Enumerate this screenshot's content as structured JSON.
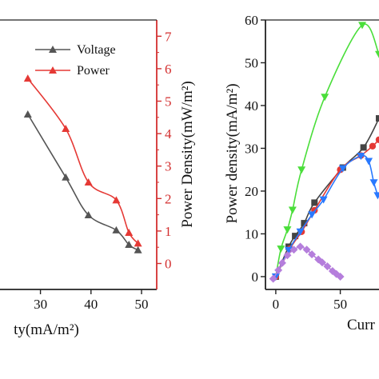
{
  "chart_data": [
    {
      "type": "line",
      "xlabel": "ty(mA/m²)",
      "ylabel_right": "Power Density(mW/m²)",
      "x_ticks": [
        "30",
        "40",
        "50"
      ],
      "y_right_ticks": [
        "0",
        "1",
        "2",
        "3",
        "4",
        "5",
        "6",
        "7"
      ],
      "xlim": [
        22,
        53
      ],
      "ylim_right": [
        -0.8,
        7.5
      ],
      "legend_placement": "top-right",
      "series": [
        {
          "name": "Voltage",
          "axis": "left",
          "color": "#555555",
          "marker": "triangle-up",
          "points": [
            [
              27.5,
              2.45
            ],
            [
              35,
              1.28
            ],
            [
              39.5,
              0.58
            ],
            [
              45,
              0.3
            ],
            [
              47.5,
              0.03
            ],
            [
              49.3,
              -0.07
            ]
          ]
        },
        {
          "name": "Power",
          "axis": "right",
          "color": "#e53935",
          "marker": "triangle-up",
          "points": [
            [
              27.5,
              5.7
            ],
            [
              35,
              4.15
            ],
            [
              39.5,
              2.5
            ],
            [
              45,
              1.95
            ],
            [
              47.5,
              0.95
            ],
            [
              49.3,
              0.62
            ]
          ]
        }
      ]
    },
    {
      "type": "line",
      "xlabel": "Curr",
      "ylabel": "Power density(mA/m²)",
      "x_ticks": [
        "0",
        "50"
      ],
      "y_ticks": [
        "0",
        "10",
        "20",
        "30",
        "40",
        "50",
        "60"
      ],
      "xlim": [
        -8,
        80
      ],
      "ylim": [
        -3,
        60
      ],
      "series": [
        {
          "color": "#4ade3a",
          "marker": "triangle-down",
          "points": [
            [
              0,
              0
            ],
            [
              4,
              6.5
            ],
            [
              9,
              11
            ],
            [
              13,
              15.6
            ],
            [
              20,
              25
            ],
            [
              38,
              42
            ],
            [
              67,
              58.8
            ],
            [
              80,
              52
            ]
          ]
        },
        {
          "color": "#444444",
          "marker": "square",
          "points": [
            [
              0,
              0
            ],
            [
              10,
              7
            ],
            [
              15,
              9.5
            ],
            [
              22,
              12.5
            ],
            [
              30,
              17.3
            ],
            [
              52,
              25.5
            ],
            [
              68,
              30.2
            ],
            [
              80,
              37
            ]
          ]
        },
        {
          "color": "#e53935",
          "marker": "circle",
          "points": [
            [
              0,
              0
            ],
            [
              11,
              6.5
            ],
            [
              20,
              10.5
            ],
            [
              30,
              15.5
            ],
            [
              50,
              25
            ],
            [
              66,
              28.3
            ],
            [
              75,
              30.5
            ],
            [
              80,
              32
            ]
          ]
        },
        {
          "color": "#2979ff",
          "marker": "triangle-down",
          "points": [
            [
              0,
              0
            ],
            [
              10,
              6.2
            ],
            [
              19,
              10.5
            ],
            [
              28,
              14.5
            ],
            [
              37,
              18
            ],
            [
              52,
              25.3
            ],
            [
              66,
              28.2
            ],
            [
              72,
              27
            ],
            [
              76,
              22
            ],
            [
              79,
              19
            ]
          ]
        },
        {
          "color": "#b57edc",
          "marker": "diamond",
          "points": [
            [
              -2,
              -0.5
            ],
            [
              2,
              1.5
            ],
            [
              5,
              3.2
            ],
            [
              9,
              5
            ],
            [
              14,
              6.3
            ],
            [
              19,
              7
            ],
            [
              24,
              6.3
            ],
            [
              28,
              5.2
            ],
            [
              33,
              4
            ],
            [
              36,
              3.3
            ],
            [
              40,
              2.4
            ],
            [
              44,
              1.3
            ],
            [
              47,
              0.6
            ],
            [
              50,
              0
            ]
          ]
        }
      ]
    }
  ]
}
